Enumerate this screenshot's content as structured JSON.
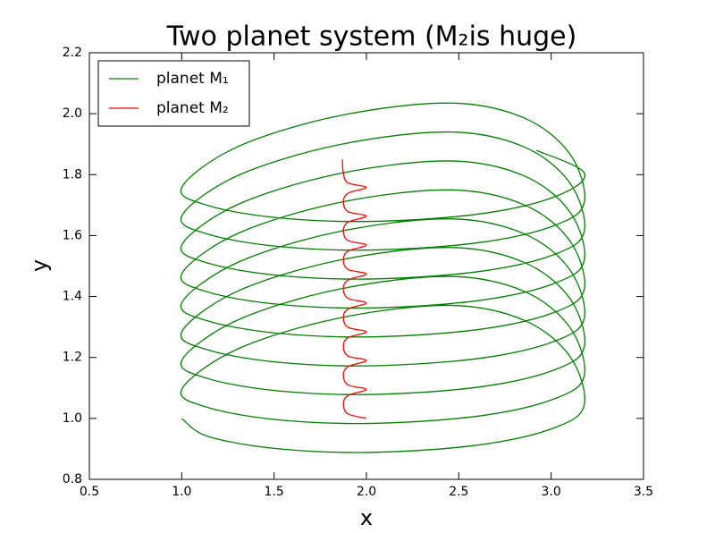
{
  "chart_data": {
    "type": "line",
    "title": "Two planet system (M₂is huge)",
    "x_label": "x",
    "y_label": "y",
    "xlim": [
      0.5,
      3.5
    ],
    "xticks": [
      0.5,
      {
        "value": 1,
        "label": "1.0"
      },
      1.5,
      {
        "value": 2,
        "label": "2.0"
      },
      2.5,
      {
        "value": 3,
        "label": "3.0"
      },
      3.5
    ],
    "ylim": [
      0.8,
      2.2
    ],
    "yticks": [
      0.8,
      {
        "value": 1,
        "label": "1.0"
      },
      1.2,
      1.4,
      1.6,
      1.8,
      {
        "value": 2,
        "label": "2.0"
      },
      2.2
    ],
    "grid": false,
    "legend": "upper left",
    "series": [
      {
        "name": "planet M₁",
        "color": "#008000",
        "x": [
          1.0,
          1.146,
          1.545,
          2.06,
          2.635,
          3.03,
          3.18,
          3.1,
          2.85,
          2.45,
          1.85,
          1.3,
          1.0,
          1.146,
          1.545,
          2.06,
          2.635,
          3.03,
          3.18,
          3.1,
          2.85,
          2.45,
          1.85,
          1.3,
          1.0,
          1.146,
          1.545,
          2.06,
          2.635,
          3.03,
          3.18,
          3.1,
          2.85,
          2.45,
          1.85,
          1.3,
          1.0,
          1.146,
          1.545,
          2.06,
          2.635,
          3.03,
          3.18,
          3.1,
          2.85,
          2.45,
          1.85,
          1.3,
          1.0,
          1.146,
          1.545,
          2.06,
          2.635,
          3.03,
          3.18,
          3.1,
          2.85,
          2.45,
          1.85,
          1.3,
          1.0,
          1.146,
          1.545,
          2.06,
          2.635,
          3.03,
          3.18,
          3.1,
          2.85,
          2.45,
          1.85,
          1.3,
          1.0,
          1.146,
          1.545,
          2.06,
          2.635,
          3.03,
          3.18,
          3.1,
          2.85,
          2.45,
          1.85,
          1.3,
          1.0,
          1.146,
          1.545,
          2.06,
          2.635,
          3.03,
          3.18,
          3.1,
          2.85,
          2.45,
          1.85,
          1.3,
          1.0,
          1.146,
          1.545,
          2.06,
          2.635,
          3.03,
          3.18,
          2.92
        ],
        "values": [
          1.0,
          0.94,
          0.899,
          0.889,
          0.915,
          0.972,
          1.047,
          1.205,
          1.323,
          1.371,
          1.329,
          1.227,
          1.095,
          1.035,
          0.994,
          0.984,
          1.01,
          1.067,
          1.142,
          1.3,
          1.418,
          1.466,
          1.424,
          1.322,
          1.19,
          1.13,
          1.089,
          1.079,
          1.105,
          1.162,
          1.237,
          1.395,
          1.513,
          1.561,
          1.519,
          1.417,
          1.284,
          1.224,
          1.183,
          1.173,
          1.199,
          1.256,
          1.331,
          1.489,
          1.607,
          1.655,
          1.613,
          1.511,
          1.379,
          1.319,
          1.278,
          1.268,
          1.294,
          1.351,
          1.426,
          1.584,
          1.702,
          1.75,
          1.708,
          1.606,
          1.474,
          1.414,
          1.373,
          1.363,
          1.389,
          1.446,
          1.521,
          1.679,
          1.797,
          1.845,
          1.803,
          1.701,
          1.569,
          1.509,
          1.468,
          1.458,
          1.484,
          1.541,
          1.616,
          1.774,
          1.892,
          1.94,
          1.898,
          1.796,
          1.664,
          1.604,
          1.563,
          1.553,
          1.579,
          1.636,
          1.711,
          1.869,
          1.987,
          2.035,
          1.993,
          1.891,
          1.758,
          1.698,
          1.657,
          1.647,
          1.673,
          1.73,
          1.805,
          1.88
        ]
      },
      {
        "name": "planet M₂",
        "color": "#ff0000",
        "x": [
          2.0,
          1.9,
          1.875,
          1.9,
          2.0,
          1.9,
          1.875,
          1.9,
          2.0,
          1.9,
          1.875,
          1.9,
          2.0,
          1.9,
          1.875,
          1.9,
          2.0,
          1.9,
          1.875,
          1.9,
          2.0,
          1.9,
          1.875,
          1.9,
          2.0,
          1.9,
          1.875,
          1.9,
          2.0,
          1.9,
          1.875,
          1.9,
          2.0,
          1.9,
          1.875,
          1.87
        ],
        "values": [
          1.0,
          1.015,
          1.047,
          1.075,
          1.095,
          1.11,
          1.142,
          1.17,
          1.19,
          1.205,
          1.237,
          1.265,
          1.284,
          1.299,
          1.331,
          1.359,
          1.379,
          1.394,
          1.426,
          1.454,
          1.474,
          1.489,
          1.521,
          1.549,
          1.569,
          1.584,
          1.616,
          1.644,
          1.664,
          1.679,
          1.711,
          1.739,
          1.758,
          1.773,
          1.805,
          1.85
        ]
      }
    ]
  }
}
